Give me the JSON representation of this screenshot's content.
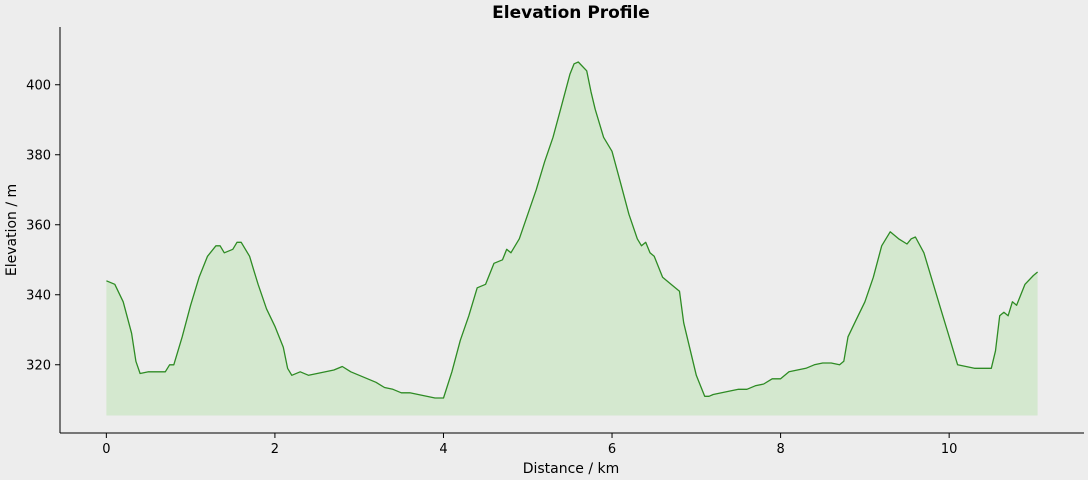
{
  "chart_data": {
    "type": "area",
    "title": "Elevation Profile",
    "xlabel": "Distance / km",
    "ylabel": "Elevation / m",
    "xlim": [
      -0.55,
      11.6
    ],
    "ylim": [
      300.5,
      416.5
    ],
    "area_base": 305.5,
    "xticks": [
      0,
      2,
      4,
      6,
      8,
      10
    ],
    "xtick_labels": [
      "0",
      "2",
      "4",
      "6",
      "8",
      "10"
    ],
    "yticks": [
      320,
      340,
      360,
      380,
      400
    ],
    "ytick_labels": [
      "320",
      "340",
      "360",
      "380",
      "400"
    ],
    "grid": false,
    "colors": {
      "line": "#2e8b24",
      "fill": "#d4e8cf",
      "axis": "#000000",
      "background": "#ededed"
    },
    "series": [
      {
        "x": [
          0,
          0.1,
          0.2,
          0.3,
          0.35,
          0.4,
          0.5,
          0.6,
          0.7,
          0.75,
          0.8,
          0.85,
          0.9,
          1.0,
          1.1,
          1.2,
          1.3,
          1.35,
          1.4,
          1.5,
          1.55,
          1.6,
          1.7,
          1.75,
          1.8,
          1.9,
          2.0,
          2.1,
          2.15,
          2.2,
          2.3,
          2.4,
          2.5,
          2.6,
          2.7,
          2.8,
          2.9,
          3.0,
          3.1,
          3.2,
          3.3,
          3.4,
          3.5,
          3.6,
          3.7,
          3.8,
          3.9,
          4.0,
          4.1,
          4.2,
          4.3,
          4.4,
          4.5,
          4.6,
          4.7,
          4.75,
          4.8,
          4.85,
          4.9,
          5.0,
          5.1,
          5.2,
          5.3,
          5.4,
          5.5,
          5.55,
          5.6,
          5.7,
          5.75,
          5.8,
          5.9,
          6.0,
          6.1,
          6.2,
          6.3,
          6.35,
          6.4,
          6.45,
          6.5,
          6.6,
          6.7,
          6.8,
          6.85,
          6.9,
          7.0,
          7.1,
          7.15,
          7.2,
          7.3,
          7.4,
          7.5,
          7.6,
          7.7,
          7.8,
          7.9,
          8.0,
          8.1,
          8.2,
          8.3,
          8.4,
          8.5,
          8.6,
          8.7,
          8.75,
          8.8,
          8.9,
          9.0,
          9.1,
          9.2,
          9.3,
          9.35,
          9.4,
          9.5,
          9.55,
          9.6,
          9.7,
          9.8,
          9.9,
          10.0,
          10.1,
          10.2,
          10.3,
          10.4,
          10.5,
          10.55,
          10.6,
          10.65,
          10.7,
          10.75,
          10.8,
          10.85,
          10.9,
          11.0,
          11.05
        ],
        "y": [
          344,
          343,
          338,
          329,
          321,
          317.5,
          318,
          318,
          318,
          320,
          320,
          324,
          328,
          337,
          345,
          351,
          354,
          354,
          352,
          353,
          355,
          355,
          351,
          347,
          343,
          336,
          331,
          325,
          319,
          317,
          318,
          317,
          317.5,
          318,
          318.5,
          319.5,
          318,
          317,
          316,
          315,
          313.5,
          313,
          312,
          312,
          311.5,
          311,
          310.5,
          310.5,
          318,
          327,
          334,
          342,
          343,
          349,
          350,
          353,
          352,
          354,
          356,
          363,
          370,
          378,
          385,
          394,
          403,
          406,
          406.5,
          404,
          398,
          393,
          385,
          381,
          372,
          363,
          356,
          354,
          355,
          352,
          351,
          345,
          343,
          341,
          332,
          327,
          317,
          311,
          311,
          311.5,
          312,
          312.5,
          313,
          313,
          314,
          314.5,
          316,
          316,
          318,
          318.5,
          319,
          320,
          320.5,
          320.5,
          320,
          321,
          328,
          333,
          338,
          345,
          354,
          358,
          357,
          356,
          354.5,
          356,
          356.5,
          352,
          344,
          336,
          328,
          320,
          319.5,
          319,
          319,
          319,
          324,
          334,
          335,
          334,
          338,
          337,
          340,
          343,
          345.5,
          346.5
        ]
      }
    ]
  }
}
